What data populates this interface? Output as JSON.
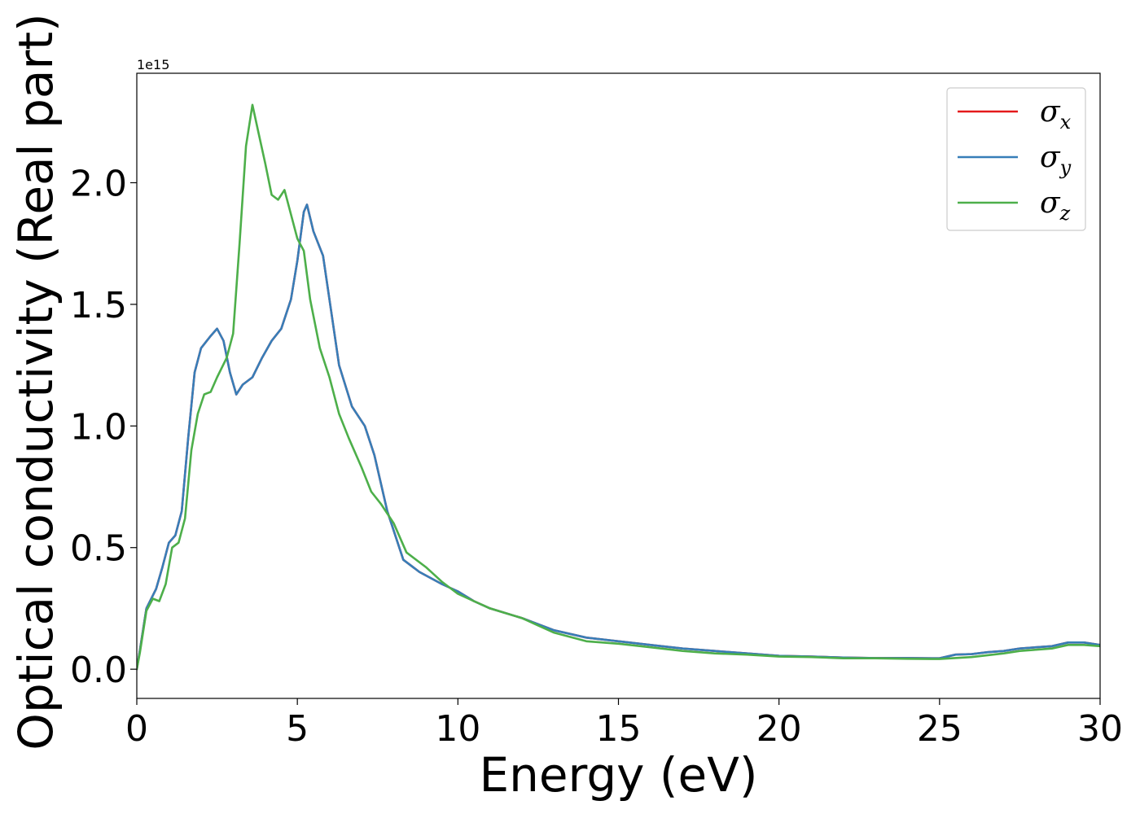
{
  "chart_data": {
    "type": "line",
    "title": "",
    "xlabel": "Energy (eV)",
    "ylabel": "Optical conductivity (Real part)",
    "y_offset_label": "1e15",
    "y_scale": 1000000000000000.0,
    "xlim": [
      0,
      30
    ],
    "ylim": [
      -0.12,
      2.45
    ],
    "xticks": [
      0,
      5,
      10,
      15,
      20,
      25,
      30
    ],
    "xtick_labels": [
      "0",
      "5",
      "10",
      "15",
      "20",
      "25",
      "30"
    ],
    "yticks": [
      0.0,
      0.5,
      1.0,
      1.5,
      2.0
    ],
    "ytick_labels": [
      "0.0",
      "0.5",
      "1.0",
      "1.5",
      "2.0"
    ],
    "grid": false,
    "legend_position": "top-right",
    "series": [
      {
        "name": "σx",
        "symbol": "σ",
        "subscript": "x",
        "color": "#e41a1c",
        "points": [
          [
            0,
            0
          ],
          [
            0.1,
            0.08
          ],
          [
            0.3,
            0.25
          ],
          [
            0.6,
            0.33
          ],
          [
            0.8,
            0.42
          ],
          [
            1.0,
            0.52
          ],
          [
            1.2,
            0.55
          ],
          [
            1.4,
            0.65
          ],
          [
            1.6,
            0.95
          ],
          [
            1.8,
            1.22
          ],
          [
            2.0,
            1.32
          ],
          [
            2.3,
            1.37
          ],
          [
            2.5,
            1.4
          ],
          [
            2.7,
            1.35
          ],
          [
            2.9,
            1.22
          ],
          [
            3.1,
            1.13
          ],
          [
            3.3,
            1.17
          ],
          [
            3.6,
            1.2
          ],
          [
            3.9,
            1.28
          ],
          [
            4.2,
            1.35
          ],
          [
            4.5,
            1.4
          ],
          [
            4.8,
            1.52
          ],
          [
            5.0,
            1.68
          ],
          [
            5.2,
            1.88
          ],
          [
            5.3,
            1.91
          ],
          [
            5.5,
            1.8
          ],
          [
            5.8,
            1.7
          ],
          [
            6.0,
            1.52
          ],
          [
            6.3,
            1.25
          ],
          [
            6.7,
            1.08
          ],
          [
            7.1,
            1.0
          ],
          [
            7.4,
            0.88
          ],
          [
            7.8,
            0.65
          ],
          [
            8.3,
            0.45
          ],
          [
            8.8,
            0.4
          ],
          [
            9.5,
            0.35
          ],
          [
            10.0,
            0.32
          ],
          [
            10.5,
            0.28
          ],
          [
            11.0,
            0.25
          ],
          [
            12.0,
            0.21
          ],
          [
            13.0,
            0.16
          ],
          [
            14.0,
            0.13
          ],
          [
            15.0,
            0.115
          ],
          [
            16.0,
            0.1
          ],
          [
            17.0,
            0.085
          ],
          [
            18.0,
            0.075
          ],
          [
            19.0,
            0.065
          ],
          [
            20.0,
            0.055
          ],
          [
            21.0,
            0.052
          ],
          [
            22.0,
            0.048
          ],
          [
            23.0,
            0.046
          ],
          [
            24.0,
            0.046
          ],
          [
            25.0,
            0.045
          ],
          [
            25.5,
            0.06
          ],
          [
            26.0,
            0.062
          ],
          [
            26.5,
            0.07
          ],
          [
            27.0,
            0.075
          ],
          [
            27.5,
            0.085
          ],
          [
            28.0,
            0.09
          ],
          [
            28.5,
            0.095
          ],
          [
            29.0,
            0.11
          ],
          [
            29.5,
            0.11
          ],
          [
            30.0,
            0.1
          ]
        ]
      },
      {
        "name": "σy",
        "symbol": "σ",
        "subscript": "y",
        "color": "#377eb8",
        "points": [
          [
            0,
            0
          ],
          [
            0.1,
            0.08
          ],
          [
            0.3,
            0.25
          ],
          [
            0.6,
            0.33
          ],
          [
            0.8,
            0.42
          ],
          [
            1.0,
            0.52
          ],
          [
            1.2,
            0.55
          ],
          [
            1.4,
            0.65
          ],
          [
            1.6,
            0.95
          ],
          [
            1.8,
            1.22
          ],
          [
            2.0,
            1.32
          ],
          [
            2.3,
            1.37
          ],
          [
            2.5,
            1.4
          ],
          [
            2.7,
            1.35
          ],
          [
            2.9,
            1.22
          ],
          [
            3.1,
            1.13
          ],
          [
            3.3,
            1.17
          ],
          [
            3.6,
            1.2
          ],
          [
            3.9,
            1.28
          ],
          [
            4.2,
            1.35
          ],
          [
            4.5,
            1.4
          ],
          [
            4.8,
            1.52
          ],
          [
            5.0,
            1.68
          ],
          [
            5.2,
            1.88
          ],
          [
            5.3,
            1.91
          ],
          [
            5.5,
            1.8
          ],
          [
            5.8,
            1.7
          ],
          [
            6.0,
            1.52
          ],
          [
            6.3,
            1.25
          ],
          [
            6.7,
            1.08
          ],
          [
            7.1,
            1.0
          ],
          [
            7.4,
            0.88
          ],
          [
            7.8,
            0.65
          ],
          [
            8.3,
            0.45
          ],
          [
            8.8,
            0.4
          ],
          [
            9.5,
            0.35
          ],
          [
            10.0,
            0.32
          ],
          [
            10.5,
            0.28
          ],
          [
            11.0,
            0.25
          ],
          [
            12.0,
            0.21
          ],
          [
            13.0,
            0.16
          ],
          [
            14.0,
            0.13
          ],
          [
            15.0,
            0.115
          ],
          [
            16.0,
            0.1
          ],
          [
            17.0,
            0.085
          ],
          [
            18.0,
            0.075
          ],
          [
            19.0,
            0.065
          ],
          [
            20.0,
            0.055
          ],
          [
            21.0,
            0.052
          ],
          [
            22.0,
            0.048
          ],
          [
            23.0,
            0.046
          ],
          [
            24.0,
            0.046
          ],
          [
            25.0,
            0.045
          ],
          [
            25.5,
            0.06
          ],
          [
            26.0,
            0.062
          ],
          [
            26.5,
            0.07
          ],
          [
            27.0,
            0.075
          ],
          [
            27.5,
            0.085
          ],
          [
            28.0,
            0.09
          ],
          [
            28.5,
            0.095
          ],
          [
            29.0,
            0.11
          ],
          [
            29.5,
            0.11
          ],
          [
            30.0,
            0.1
          ]
        ]
      },
      {
        "name": "σz",
        "symbol": "σ",
        "subscript": "z",
        "color": "#4daf4a",
        "points": [
          [
            0,
            0
          ],
          [
            0.1,
            0.07
          ],
          [
            0.3,
            0.24
          ],
          [
            0.5,
            0.29
          ],
          [
            0.7,
            0.28
          ],
          [
            0.9,
            0.35
          ],
          [
            1.1,
            0.5
          ],
          [
            1.3,
            0.52
          ],
          [
            1.5,
            0.62
          ],
          [
            1.7,
            0.9
          ],
          [
            1.9,
            1.05
          ],
          [
            2.1,
            1.13
          ],
          [
            2.3,
            1.14
          ],
          [
            2.5,
            1.2
          ],
          [
            2.8,
            1.28
          ],
          [
            3.0,
            1.38
          ],
          [
            3.2,
            1.75
          ],
          [
            3.4,
            2.15
          ],
          [
            3.6,
            2.32
          ],
          [
            3.8,
            2.2
          ],
          [
            4.0,
            2.08
          ],
          [
            4.2,
            1.95
          ],
          [
            4.4,
            1.93
          ],
          [
            4.6,
            1.97
          ],
          [
            4.8,
            1.87
          ],
          [
            5.0,
            1.77
          ],
          [
            5.2,
            1.72
          ],
          [
            5.4,
            1.52
          ],
          [
            5.7,
            1.32
          ],
          [
            6.0,
            1.2
          ],
          [
            6.3,
            1.05
          ],
          [
            6.6,
            0.95
          ],
          [
            7.0,
            0.83
          ],
          [
            7.3,
            0.73
          ],
          [
            7.6,
            0.68
          ],
          [
            8.0,
            0.6
          ],
          [
            8.4,
            0.48
          ],
          [
            9.0,
            0.42
          ],
          [
            9.5,
            0.36
          ],
          [
            10.0,
            0.31
          ],
          [
            10.5,
            0.28
          ],
          [
            11.0,
            0.25
          ],
          [
            12.0,
            0.21
          ],
          [
            12.5,
            0.18
          ],
          [
            13.0,
            0.15
          ],
          [
            14.0,
            0.115
          ],
          [
            15.0,
            0.105
          ],
          [
            16.0,
            0.09
          ],
          [
            17.0,
            0.075
          ],
          [
            18.0,
            0.065
          ],
          [
            19.0,
            0.06
          ],
          [
            20.0,
            0.052
          ],
          [
            21.0,
            0.05
          ],
          [
            22.0,
            0.045
          ],
          [
            23.0,
            0.045
          ],
          [
            24.0,
            0.043
          ],
          [
            25.0,
            0.042
          ],
          [
            26.0,
            0.05
          ],
          [
            27.0,
            0.065
          ],
          [
            27.5,
            0.075
          ],
          [
            28.0,
            0.08
          ],
          [
            28.5,
            0.085
          ],
          [
            29.0,
            0.1
          ],
          [
            29.5,
            0.1
          ],
          [
            30.0,
            0.095
          ]
        ]
      }
    ]
  }
}
